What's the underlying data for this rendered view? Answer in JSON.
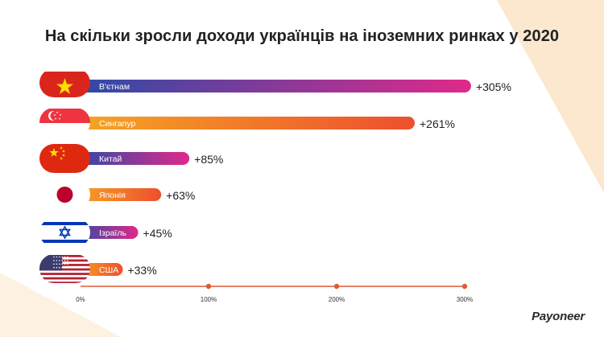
{
  "brand": {
    "logo": "Payoneer"
  },
  "colors": {
    "grad_violet": [
      "#2b4ba6",
      "#e0298a"
    ],
    "grad_orange": [
      "#f5a623",
      "#ee4f2f"
    ],
    "axis": "#e05a33",
    "value_text": "#222222",
    "label_text": "#ffffff"
  },
  "chart_data": {
    "type": "bar",
    "orientation": "horizontal",
    "title": "На скільки зросли доходи українців на іноземних ринках у 2020",
    "categories": [
      "В'єтнам",
      "Сингапур",
      "Китай",
      "Японія",
      "Ізраїль",
      "США"
    ],
    "values": [
      305,
      261,
      85,
      63,
      45,
      33
    ],
    "value_labels": [
      "+305%",
      "+261%",
      "+85%",
      "+63%",
      "+45%",
      "+33%"
    ],
    "flags": [
      "vietnam-flag-icon",
      "singapore-flag-icon",
      "china-flag-icon",
      "japan-flag-icon",
      "israel-flag-icon",
      "usa-flag-icon"
    ],
    "bar_styles": [
      "violet",
      "orange",
      "violet",
      "orange",
      "violet",
      "orange"
    ],
    "xlim": [
      0,
      300
    ],
    "xticks": [
      0,
      100,
      200,
      300
    ],
    "xtick_labels": [
      "0%",
      "100%",
      "200%",
      "300%"
    ],
    "grid": false,
    "legend": "none"
  }
}
